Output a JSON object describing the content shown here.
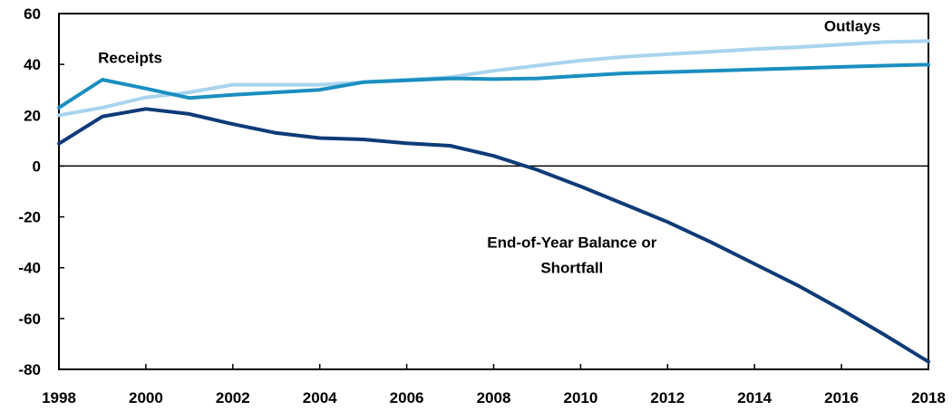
{
  "chart_data": {
    "type": "line",
    "title": "",
    "xlabel": "",
    "ylabel": "",
    "xlim": [
      1998,
      2018
    ],
    "ylim": [
      -80,
      60
    ],
    "x_ticks": [
      "1998",
      "2000",
      "2002",
      "2004",
      "2006",
      "2008",
      "2010",
      "2012",
      "2014",
      "2016",
      "2018"
    ],
    "y_ticks": [
      "60",
      "40",
      "20",
      "0",
      "-20",
      "-40",
      "-60",
      "-80"
    ],
    "grid": false,
    "legend": "none",
    "x": [
      1998,
      1999,
      2000,
      2001,
      2002,
      2003,
      2004,
      2005,
      2006,
      2007,
      2008,
      2009,
      2010,
      2011,
      2012,
      2013,
      2014,
      2015,
      2016,
      2017,
      2018
    ],
    "series": [
      {
        "name": "Outlays",
        "color": "#a8d4ee",
        "values": [
          20,
          23,
          27,
          29,
          32,
          32,
          32,
          33,
          34,
          35,
          37.5,
          39.5,
          41.5,
          43,
          44,
          45,
          46,
          46.8,
          47.8,
          48.8,
          49.2
        ]
      },
      {
        "name": "Receipts",
        "color": "#1a8ec0",
        "values": [
          23,
          34,
          30.5,
          26.8,
          28,
          29,
          30,
          33,
          33.7,
          34.5,
          34.2,
          34.5,
          35.5,
          36.5,
          37,
          37.5,
          38,
          38.5,
          39,
          39.5,
          39.9
        ]
      },
      {
        "name": "End-of-Year Balance or Shortfall",
        "color": "#0e3b78",
        "values": [
          8.8,
          19.5,
          22.5,
          20.5,
          16.5,
          13,
          11,
          10.5,
          9,
          8,
          4,
          -1.5,
          -8,
          -15,
          -22,
          -30,
          -38.5,
          -47,
          -56.5,
          -66.5,
          -77
        ]
      }
    ],
    "annotations": [
      {
        "text": "Outlays",
        "x": 2016.9,
        "y": 53,
        "anchor": "end"
      },
      {
        "text": "Receipts",
        "x": 1998.9,
        "y": 40.5,
        "anchor": "start"
      },
      {
        "text": "End-of-Year Balance or",
        "x": 2009.8,
        "y": -32,
        "anchor": "middle"
      },
      {
        "text": "Shortfall",
        "x": 2009.8,
        "y": -42,
        "anchor": "middle"
      }
    ]
  }
}
